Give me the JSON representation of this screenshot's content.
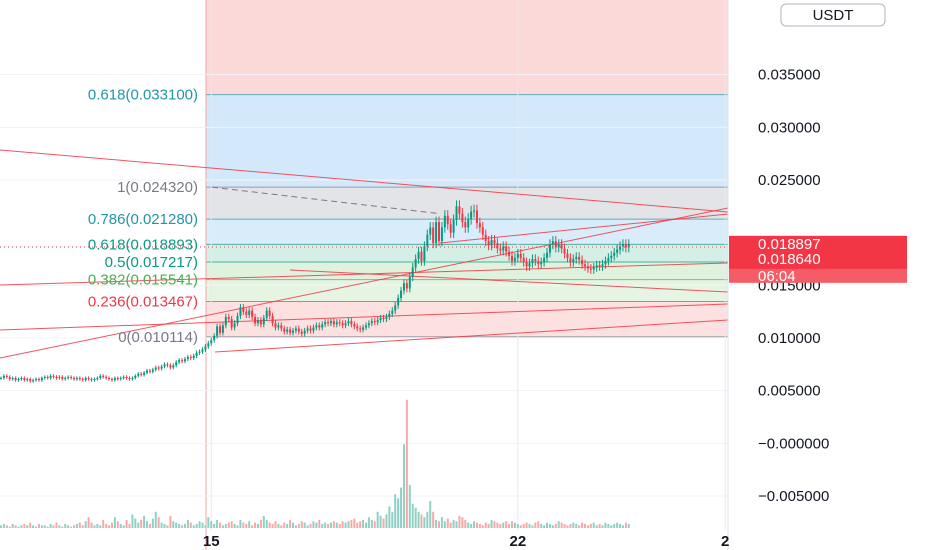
{
  "chart_data": {
    "type": "candlestick",
    "currency_label": "USDT",
    "y_axis": {
      "range": [
        -0.008,
        0.041
      ],
      "ticks": [
        {
          "value": 0.035,
          "label": "0.035000"
        },
        {
          "value": 0.03,
          "label": "0.030000"
        },
        {
          "value": 0.025,
          "label": "0.025000"
        },
        {
          "value": 0.015,
          "label": "0.015000"
        },
        {
          "value": 0.01,
          "label": "0.010000"
        },
        {
          "value": 0.005,
          "label": "0.005000"
        },
        {
          "value": 0.0,
          "label": "−0.000000"
        },
        {
          "value": -0.005,
          "label": "−0.005000"
        }
      ]
    },
    "x_axis": {
      "ticks": [
        {
          "label": "15",
          "index": 72
        },
        {
          "label": "22",
          "index": 177
        },
        {
          "label": "2",
          "index": 248
        }
      ]
    },
    "price_tags": [
      {
        "label": "0.018897",
        "value": 0.018897,
        "color": "#f23645"
      },
      {
        "label": "0.018640",
        "value": 0.01864,
        "color": "#f23645"
      },
      {
        "label": "06:04",
        "value": null,
        "color": "#f23645"
      }
    ],
    "fib_levels": [
      {
        "ratio": "0.618",
        "label": "0.618(0.033100)",
        "value": 0.0331,
        "color": "#2196a8"
      },
      {
        "ratio": "1",
        "label": "1(0.024320)",
        "value": 0.02432,
        "color": "#787b86"
      },
      {
        "ratio": "0.786",
        "label": "0.786(0.021280)",
        "value": 0.02128,
        "color": "#2196a8"
      },
      {
        "ratio": "0.618",
        "label": "0.618(0.018893)",
        "value": 0.018893,
        "color": "#089981"
      },
      {
        "ratio": "0.5",
        "label": "0.5(0.017217)",
        "value": 0.017217,
        "color": "#089981"
      },
      {
        "ratio": "0.382",
        "label": "0.382(0.015541)",
        "value": 0.015541,
        "color": "#4caf50"
      },
      {
        "ratio": "0.236",
        "label": "0.236(0.013467)",
        "value": 0.013467,
        "color": "#f23645"
      },
      {
        "ratio": "0",
        "label": "0(0.010114)",
        "value": 0.010114,
        "color": "#787b86"
      }
    ],
    "candles_phase1": [
      0.0062,
      0.0064,
      0.0063,
      0.0061,
      0.0062,
      0.006,
      0.0061,
      0.0062,
      0.006,
      0.0061,
      0.0059,
      0.006,
      0.0061,
      0.006,
      0.0062,
      0.0063,
      0.0062,
      0.0064,
      0.0063,
      0.0062,
      0.0063,
      0.0061,
      0.0062,
      0.0063,
      0.0062,
      0.0061,
      0.0062,
      0.0061,
      0.006,
      0.0062,
      0.0061,
      0.006,
      0.0061,
      0.0062,
      0.0064,
      0.0063,
      0.0062,
      0.0061,
      0.006,
      0.0062,
      0.0061,
      0.0062,
      0.0063,
      0.0062,
      0.0061,
      0.0062,
      0.0064,
      0.0066,
      0.0065,
      0.0067,
      0.0069,
      0.0068,
      0.007,
      0.0072,
      0.0071,
      0.0073,
      0.0075,
      0.0074,
      0.0072,
      0.0074,
      0.0077,
      0.0079,
      0.0078,
      0.008,
      0.0082,
      0.0081,
      0.0083,
      0.0086,
      0.0087,
      0.0089,
      0.0092,
      0.0095,
      0.0098,
      0.0102,
      0.0111,
      0.0105,
      0.0112,
      0.012,
      0.0118,
      0.011,
      0.0114,
      0.0121,
      0.0129,
      0.0125,
      0.0122,
      0.0126,
      0.012,
      0.0114,
      0.0117,
      0.0113,
      0.0119,
      0.0126,
      0.0121,
      0.0114,
      0.011,
      0.0112,
      0.0109,
      0.0106,
      0.0108,
      0.0105,
      0.0107,
      0.0109,
      0.0106,
      0.0104,
      0.0107,
      0.0109,
      0.0107,
      0.011,
      0.0112,
      0.011,
      0.0113,
      0.0115,
      0.0114,
      0.0116,
      0.0113,
      0.0115,
      0.0114,
      0.0112,
      0.0114,
      0.0116,
      0.0113,
      0.0111,
      0.0109,
      0.0108,
      0.011,
      0.0112,
      0.0114,
      0.0116,
      0.0115,
      0.0117,
      0.0119,
      0.0118,
      0.012,
      0.0123,
      0.0126,
      0.0131,
      0.0138,
      0.0145,
      0.0152,
      0.0147,
      0.0158,
      0.0167,
      0.0175,
      0.0182,
      0.0173,
      0.0187,
      0.0198,
      0.0205,
      0.019,
      0.021,
      0.0192,
      0.0205,
      0.0216,
      0.0208,
      0.02,
      0.0212,
      0.0225,
      0.0218,
      0.021,
      0.0205,
      0.0213,
      0.022,
      0.0221,
      0.0209,
      0.0205,
      0.0198,
      0.0192,
      0.0188,
      0.0193,
      0.019,
      0.0185,
      0.0183,
      0.0187,
      0.0182,
      0.0178,
      0.0173,
      0.0176,
      0.018,
      0.0176,
      0.0172,
      0.0168,
      0.0171,
      0.0175,
      0.0173,
      0.017,
      0.0172,
      0.0176,
      0.0181,
      0.0189,
      0.0192,
      0.0186,
      0.0189,
      0.0185,
      0.018,
      0.0176,
      0.0172,
      0.0175,
      0.0177,
      0.0174,
      0.017,
      0.0168,
      0.0166,
      0.0165,
      0.0167,
      0.0169,
      0.0168,
      0.017,
      0.0173,
      0.0176,
      0.0178,
      0.0181,
      0.0184,
      0.0187,
      0.0189,
      0.0186,
      0.0189
    ],
    "volumes": [
      2,
      3,
      2,
      1,
      3,
      2,
      1,
      2,
      3,
      2,
      4,
      2,
      1,
      3,
      2,
      2,
      1,
      3,
      2,
      4,
      2,
      1,
      3,
      2,
      1,
      2,
      3,
      4,
      2,
      5,
      8,
      4,
      2,
      3,
      2,
      6,
      3,
      2,
      4,
      8,
      5,
      3,
      2,
      6,
      3,
      10,
      7,
      4,
      6,
      9,
      5,
      3,
      7,
      12,
      8,
      4,
      3,
      2,
      9,
      5,
      4,
      3,
      2,
      3,
      6,
      4,
      2,
      3,
      5,
      4,
      2,
      8,
      5,
      3,
      6,
      4,
      2,
      3,
      4,
      5,
      3,
      2,
      6,
      4,
      3,
      5,
      2,
      4,
      3,
      6,
      9,
      6,
      4,
      3,
      5,
      3,
      2,
      4,
      3,
      6,
      4,
      2,
      3,
      5,
      4,
      2,
      3,
      5,
      4,
      6,
      3,
      4,
      3,
      4,
      5,
      4,
      3,
      5,
      4,
      5,
      6,
      7,
      4,
      5,
      6,
      4,
      8,
      6,
      5,
      12,
      9,
      7,
      10,
      16,
      12,
      25,
      22,
      30,
      62,
      95,
      32,
      18,
      15,
      12,
      10,
      8,
      12,
      20,
      12,
      6,
      5,
      8,
      5,
      7,
      4,
      6,
      5,
      9,
      8,
      6,
      4,
      3,
      5,
      4,
      3,
      2,
      4,
      3,
      6,
      5,
      4,
      3,
      4,
      5,
      3,
      5,
      4,
      3,
      2,
      3,
      4,
      3,
      2,
      4,
      5,
      3,
      2,
      4,
      3,
      2,
      3,
      5,
      4,
      3,
      2,
      3,
      4,
      3,
      2,
      4,
      3,
      2,
      3,
      4,
      2,
      3,
      2,
      4,
      3,
      2,
      3,
      4,
      3,
      2,
      4,
      3,
      2,
      3,
      2
    ]
  }
}
